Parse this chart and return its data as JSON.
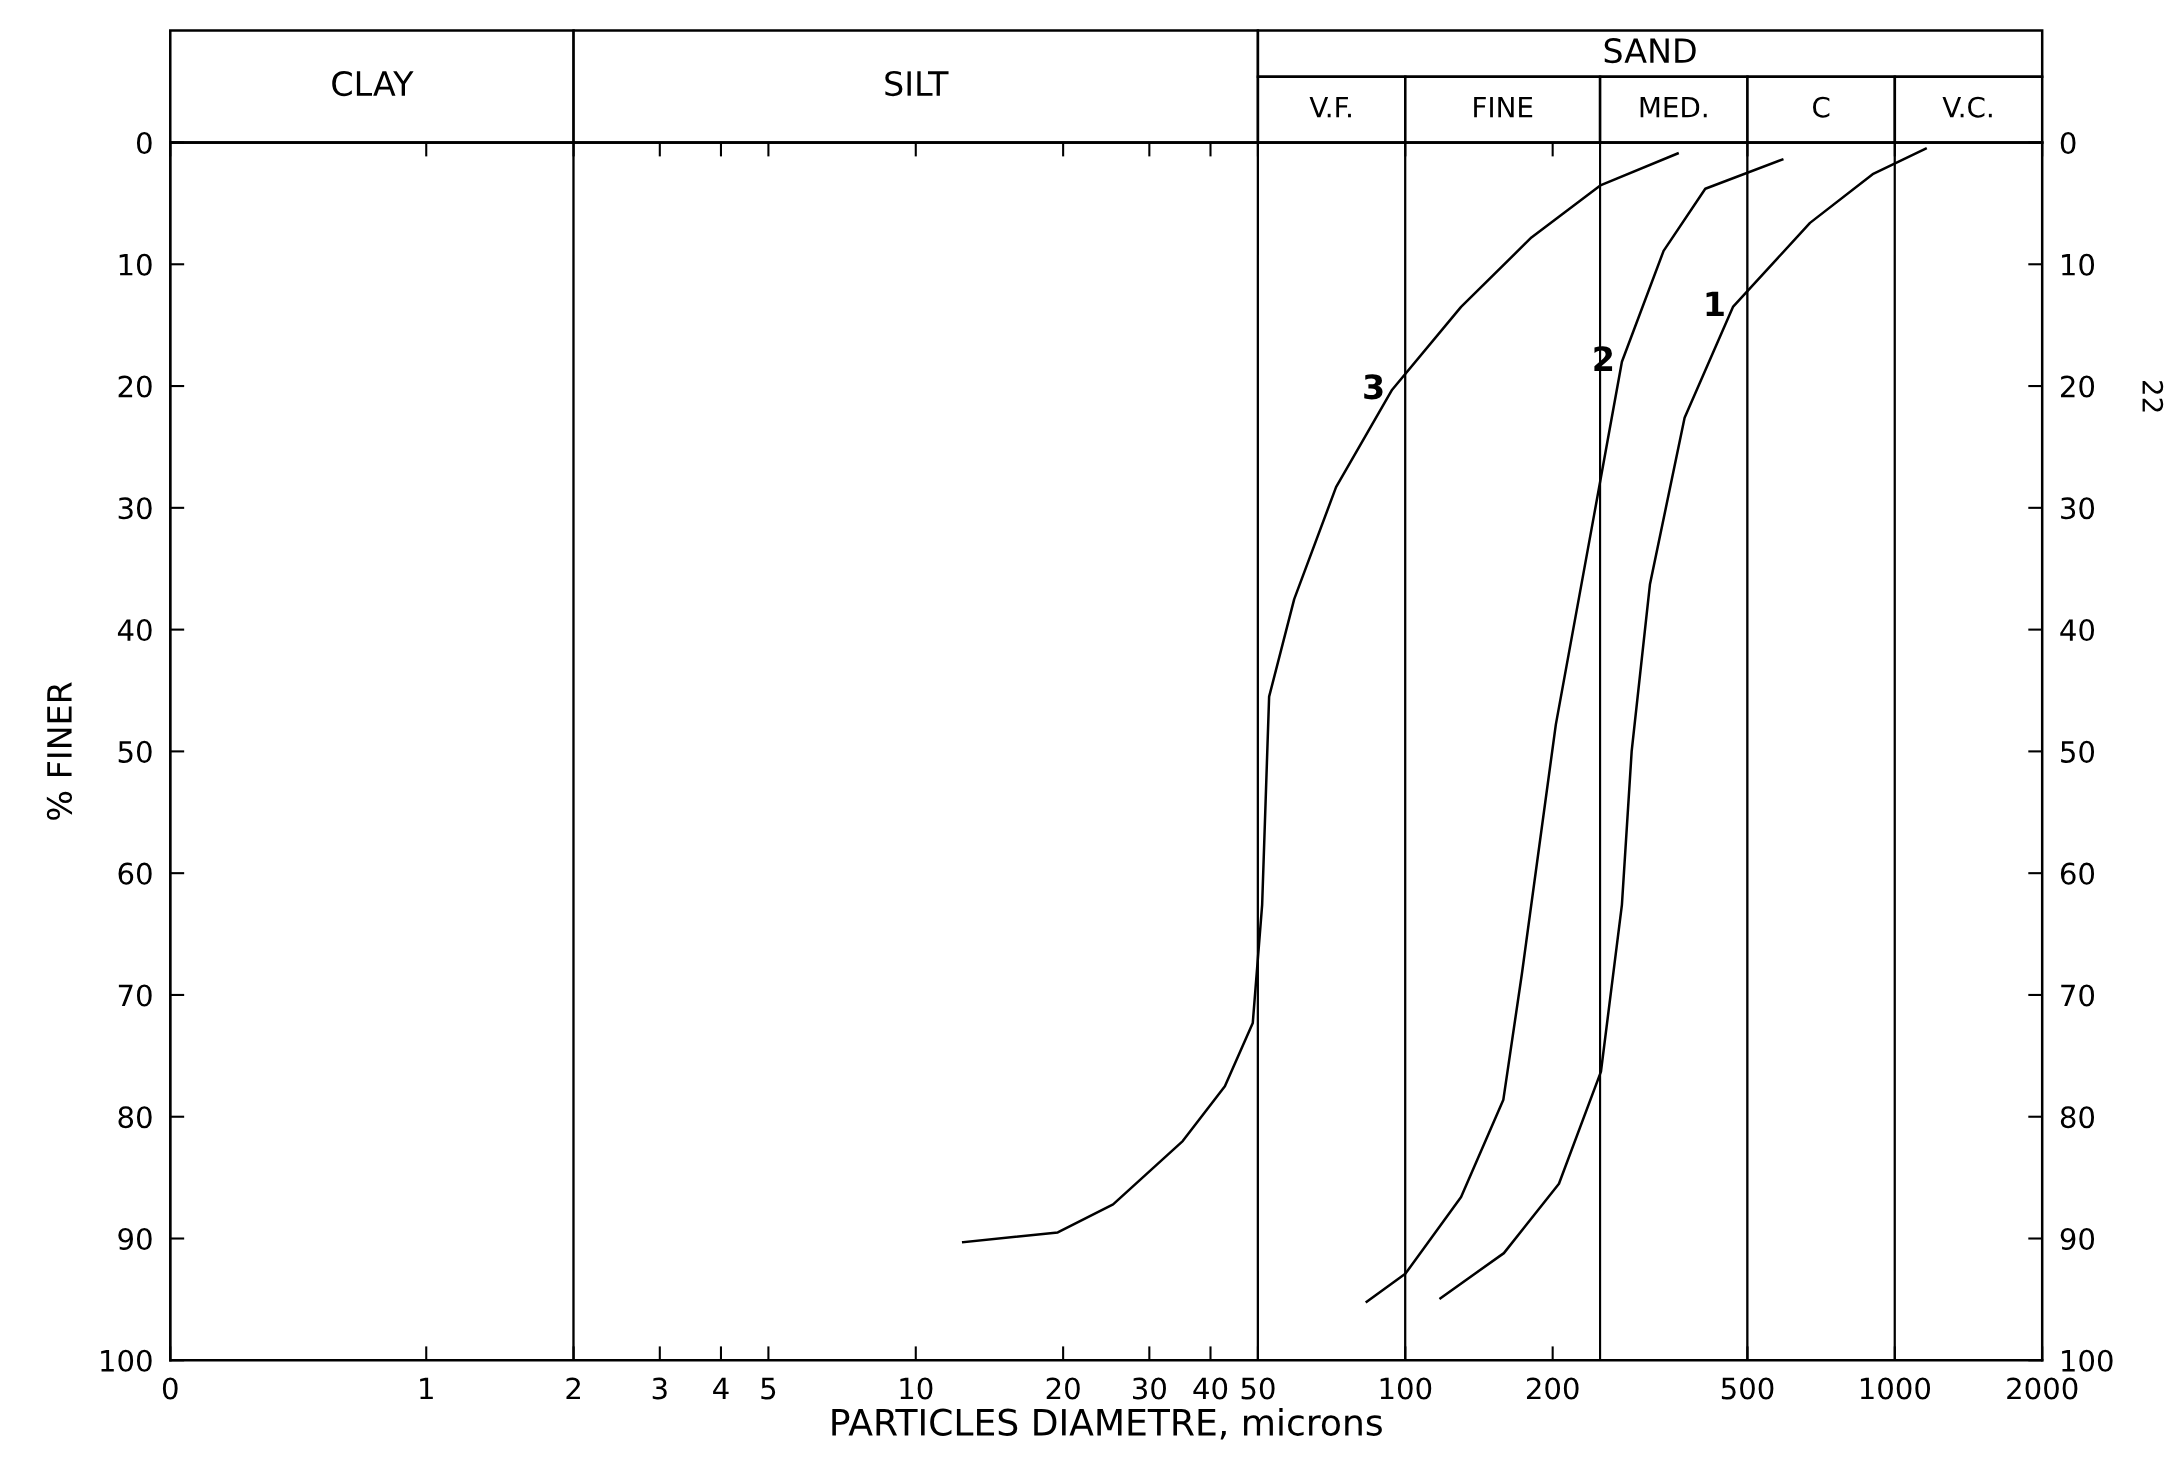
{
  "chart_data": {
    "type": "line",
    "xlabel": "PARTICLES DIAMETRE, microns",
    "ylabel": "% FINER",
    "log": "x",
    "xlim": [
      0.3,
      2000
    ],
    "xticks": [
      {
        "value": 0.3,
        "label": "0"
      },
      1,
      2,
      3,
      4,
      5,
      10,
      20,
      30,
      40,
      50,
      100,
      200,
      500,
      1000,
      2000
    ],
    "ylim": [
      100,
      0
    ],
    "yticks": [
      0,
      10,
      20,
      30,
      40,
      50,
      60,
      70,
      80,
      90,
      100
    ],
    "y2lim": [
      100,
      0
    ],
    "y2ticks": [
      0,
      10,
      20,
      30,
      40,
      50,
      60,
      70,
      80,
      90,
      100
    ],
    "grid": false,
    "legend": false,
    "marker": "none",
    "line_style": "solid",
    "series": [
      {
        "name": "3",
        "color": "#000000",
        "x": [
          12.5,
          19.5,
          25.3,
          35.1,
          42.8,
          48.8,
          51,
          52.7,
          59.3,
          72.2,
          94,
          130,
          181,
          251,
          360
        ],
        "values": [
          90.3,
          89.5,
          87.2,
          82,
          77.5,
          72.3,
          62.6,
          45.5,
          37.5,
          28.3,
          20.3,
          13.5,
          7.8,
          3.5,
          0.9
        ]
      },
      {
        "name": "2",
        "color": "#000000",
        "x": [
          83.4,
          100,
          130,
          158.6,
          173,
          203,
          243,
          277,
          337,
          410,
          589
        ],
        "values": [
          95.2,
          92.9,
          86.6,
          78.6,
          68.3,
          47.8,
          30.6,
          18,
          8.9,
          3.8,
          1.4
        ]
      },
      {
        "name": "1",
        "color": "#000000",
        "x": [
          118,
          159,
          206,
          251,
          277,
          290,
          316,
          372,
          467,
          671,
          901,
          1156
        ],
        "values": [
          94.9,
          91.2,
          85.5,
          76.3,
          62.6,
          50,
          36.3,
          22.6,
          13.5,
          6.6,
          2.6,
          0.5
        ]
      }
    ],
    "bands": [
      {
        "axis": "x",
        "from": 0.3,
        "to": 2,
        "label": "CLAY",
        "color": "#ffffff"
      },
      {
        "axis": "x",
        "from": 2,
        "to": 50,
        "label": "SILT",
        "color": "#ffffff"
      },
      {
        "axis": "x",
        "from": 50,
        "to": 2000,
        "label": "SAND",
        "color": "#ffffff"
      },
      {
        "axis": "x",
        "from": 50,
        "to": 100,
        "label": "V.F.",
        "color": "#ffffff"
      },
      {
        "axis": "x",
        "from": 100,
        "to": 250,
        "label": "FINE",
        "color": "#ffffff"
      },
      {
        "axis": "x",
        "from": 250,
        "to": 500,
        "label": "MED.",
        "color": "#ffffff"
      },
      {
        "axis": "x",
        "from": 500,
        "to": 1000,
        "label": "C",
        "color": "#ffffff"
      },
      {
        "axis": "x",
        "from": 1000,
        "to": 2000,
        "label": "V.C.",
        "color": "#ffffff"
      }
    ],
    "annotations": [
      "22"
    ]
  }
}
